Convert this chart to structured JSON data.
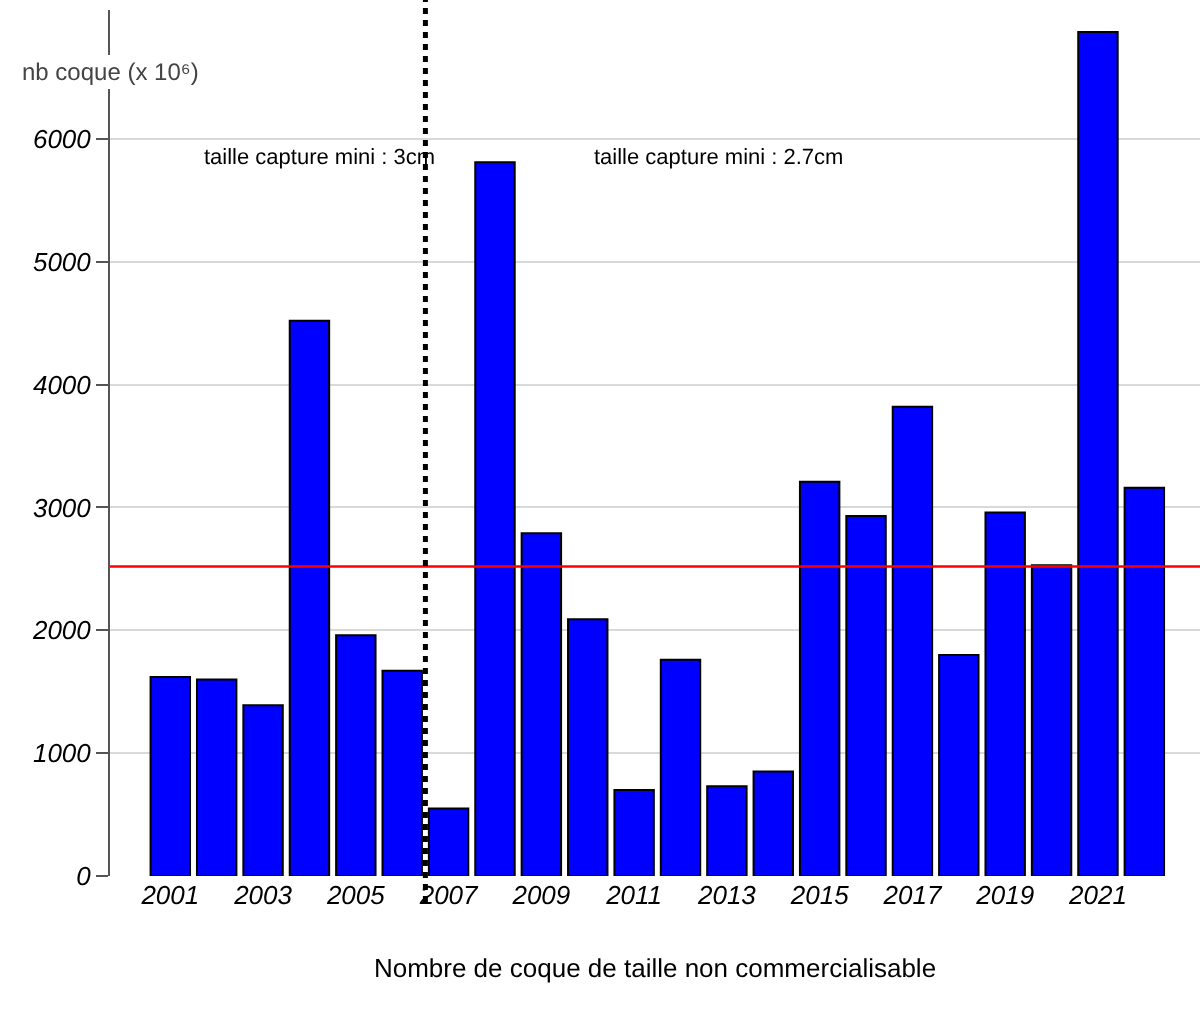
{
  "chart_data": {
    "type": "bar",
    "ylabel": "nb coque (x 10⁶)",
    "xlabel": "Nombre de coque de taille non commercialisable",
    "x": [
      2001,
      2002,
      2003,
      2004,
      2005,
      2006,
      2007,
      2008,
      2009,
      2010,
      2011,
      2012,
      2013,
      2014,
      2015,
      2016,
      2017,
      2018,
      2019,
      2020,
      2021,
      2022
    ],
    "series": [
      {
        "color": "#0000ff",
        "values": [
          1620,
          1600,
          1390,
          4520,
          1960,
          1670,
          550,
          5810,
          2790,
          2090,
          700,
          1760,
          730,
          850,
          3210,
          2930,
          3820,
          1800,
          2960,
          2530,
          6870,
          3160
        ]
      }
    ],
    "xlim": [
      1999.7,
      2023.2
    ],
    "xticks": [
      2001,
      2003,
      2005,
      2007,
      2009,
      2011,
      2013,
      2015,
      2017,
      2019,
      2021
    ],
    "ylim": [
      0,
      7050
    ],
    "yticks": [
      0,
      1000,
      2000,
      3000,
      4000,
      5000,
      6000
    ],
    "grid": "y",
    "ref_lines": [
      {
        "axis": "y",
        "value": 2520,
        "color": "#ff0000",
        "line_style": "solid"
      },
      {
        "axis": "x",
        "value": 2006.5,
        "color": "#000000",
        "line_style": "dotted"
      }
    ],
    "annotations": [
      "taille capture mini : 3cm",
      "taille capture mini : 2.7cm"
    ]
  }
}
